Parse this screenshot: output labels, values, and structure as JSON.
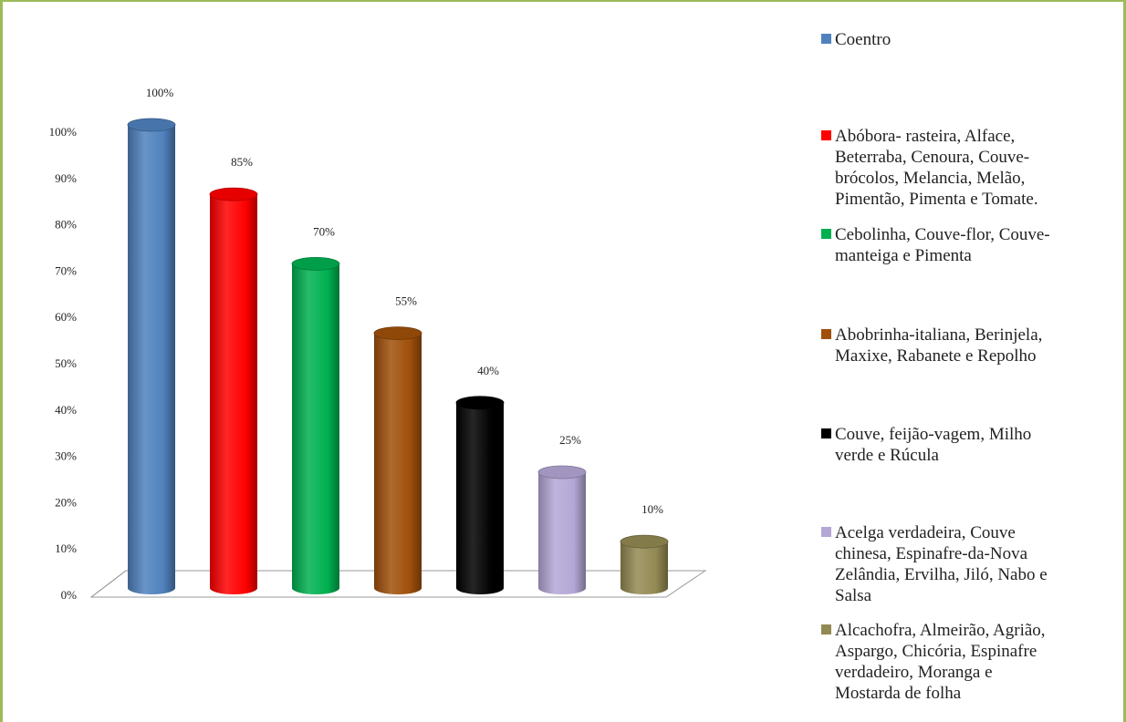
{
  "chart_data": {
    "type": "bar",
    "style": "3d-cylinder",
    "categories": [
      "Coentro",
      "Abóbora- rasteira, Alface, Beterraba, Cenoura, Couve-brócolos, Melancia, Melão, Pimentão, Pimenta e Tomate.",
      "Cebolinha, Couve-flor, Couve-manteiga e Pimenta",
      "Abobrinha-italiana, Berinjela, Maxixe, Rabanete e Repolho",
      "Couve, feijão-vagem, Milho verde e Rúcula",
      "Acelga verdadeira, Couve chinesa, Espinafre-da-Nova Zelândia, Ervilha, Jiló, Nabo e Salsa",
      "Alcachofra, Almeirão, Agrião, Aspargo, Chicória, Espinafre verdadeiro, Moranga e Mostarda de folha"
    ],
    "values": [
      100,
      85,
      70,
      55,
      40,
      25,
      10
    ],
    "data_labels": [
      "100%",
      "85%",
      "70%",
      "55%",
      "40%",
      "25%",
      "10%"
    ],
    "colors": [
      "#4f81bd",
      "#ff0000",
      "#00b050",
      "#a0500a",
      "#000000",
      "#b4a7d6",
      "#938953"
    ],
    "y_ticks": [
      "0%",
      "10%",
      "20%",
      "30%",
      "40%",
      "50%",
      "60%",
      "70%",
      "80%",
      "90%",
      "100%"
    ],
    "ylim": [
      0,
      100
    ],
    "title": "",
    "xlabel": "",
    "ylabel": "",
    "grid": false,
    "legend_position": "right",
    "border_color": "#9bbb59"
  },
  "legend": {
    "items": [
      {
        "lines": [
          "Coentro"
        ]
      },
      {
        "lines": [
          "Abóbora- rasteira, Alface,",
          "Beterraba, Cenoura, Couve-",
          "brócolos, Melancia, Melão,",
          "Pimentão, Pimenta e Tomate."
        ]
      },
      {
        "lines": [
          "Cebolinha, Couve-flor, Couve-",
          "manteiga e Pimenta"
        ]
      },
      {
        "lines": [
          "Abobrinha-italiana, Berinjela,",
          "Maxixe, Rabanete e Repolho"
        ]
      },
      {
        "lines": [
          "Couve, feijão-vagem, Milho",
          "verde e Rúcula"
        ]
      },
      {
        "lines": [
          "Acelga verdadeira, Couve",
          "chinesa, Espinafre-da-Nova",
          "Zelândia, Ervilha, Jiló, Nabo e",
          "Salsa"
        ]
      },
      {
        "lines": [
          "Alcachofra, Almeirão, Agrião,",
          "Aspargo, Chicória, Espinafre",
          "verdadeiro, Moranga e",
          "Mostarda de folha"
        ]
      }
    ]
  }
}
